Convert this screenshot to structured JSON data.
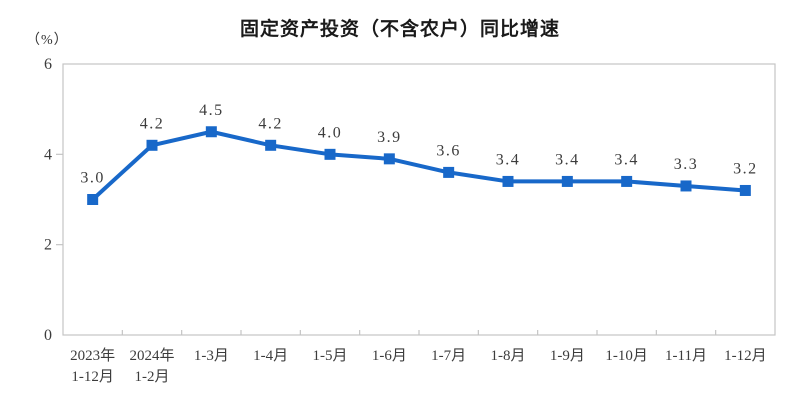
{
  "chart": {
    "title": "固定资产投资（不含农户）同比增速",
    "unit_label": "（%）",
    "colors": {
      "line": "#1868c9",
      "marker": "#1868c9",
      "axis": "#c4c4c4",
      "tick_text": "#3c3c3c",
      "data_label_text": "#3c3c3c",
      "title_text": "#1a1a1a",
      "background": "#ffffff"
    }
  },
  "chart_data": {
    "type": "line",
    "title": "固定资产投资（不含农户）同比增速",
    "unit": "%",
    "categories": [
      [
        "2023年",
        "1-12月"
      ],
      [
        "2024年",
        "1-2月"
      ],
      [
        "1-3月"
      ],
      [
        "1-4月"
      ],
      [
        "1-5月"
      ],
      [
        "1-6月"
      ],
      [
        "1-7月"
      ],
      [
        "1-8月"
      ],
      [
        "1-9月"
      ],
      [
        "1-10月"
      ],
      [
        "1-11月"
      ],
      [
        "1-12月"
      ]
    ],
    "values": [
      3.0,
      4.2,
      4.5,
      4.2,
      4.0,
      3.9,
      3.6,
      3.4,
      3.4,
      3.4,
      3.3,
      3.2
    ],
    "point_labels": [
      "3.0",
      "4.2",
      "4.5",
      "4.2",
      "4.0",
      "3.9",
      "3.6",
      "3.4",
      "3.4",
      "3.4",
      "3.3",
      "3.2"
    ],
    "ylim": [
      0,
      6
    ],
    "yticks": [
      0,
      2,
      4,
      6
    ],
    "xlabel": "",
    "ylabel": "（%）",
    "grid": false,
    "legend": "none",
    "marker": "square"
  }
}
